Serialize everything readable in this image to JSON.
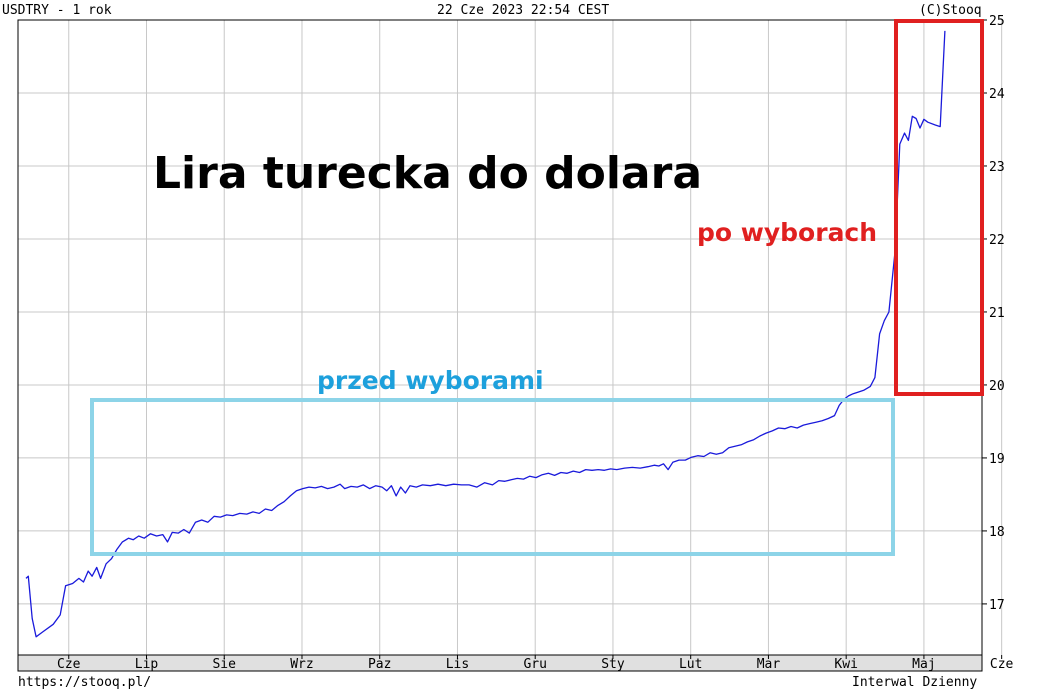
{
  "header": {
    "symbol": "USDTRY - 1 rok",
    "timestamp": "22 Cze 2023 22:54 CEST",
    "copyright": "(C)Stooq"
  },
  "footer": {
    "url": "https://stooq.pl/",
    "interval": "Interwal Dzienny"
  },
  "annotations": {
    "title": "Lira turecka do dolara",
    "after_label": "po wyborach",
    "before_label": "przed wyborami"
  },
  "colors": {
    "line": "#1a1adb",
    "before_box": "#8dd4e8",
    "before_text": "#1da0dc",
    "after_box": "#e02020",
    "after_text": "#e02020",
    "grid": "#c8c8c8",
    "axis_strip": "#e0e0e0"
  },
  "chart_data": {
    "type": "line",
    "title": "Lira turecka do dolara",
    "xlabel": "",
    "ylabel": "",
    "ylim": [
      16.3,
      25.0
    ],
    "grid": true,
    "x_tick_labels": [
      "Cze",
      "Lip",
      "Sie",
      "Wrz",
      "Paz",
      "Lis",
      "Gru",
      "Sty",
      "Lut",
      "Mar",
      "Kwi",
      "Maj",
      "Cze"
    ],
    "y_tick_labels": [
      "17",
      "18",
      "19",
      "20",
      "21",
      "22",
      "23",
      "24",
      "25"
    ],
    "y_ticks": [
      17,
      18,
      19,
      20,
      21,
      22,
      23,
      24,
      25
    ],
    "x_range": [
      0,
      12.4
    ],
    "series": [
      {
        "points": [
          [
            0.0,
            17.35
          ],
          [
            0.03,
            17.38
          ],
          [
            0.08,
            16.8
          ],
          [
            0.13,
            16.55
          ],
          [
            0.22,
            16.62
          ],
          [
            0.35,
            16.72
          ],
          [
            0.44,
            16.85
          ],
          [
            0.51,
            17.25
          ],
          [
            0.6,
            17.28
          ],
          [
            0.68,
            17.35
          ],
          [
            0.74,
            17.3
          ],
          [
            0.8,
            17.45
          ],
          [
            0.85,
            17.38
          ],
          [
            0.91,
            17.5
          ],
          [
            0.96,
            17.35
          ],
          [
            1.03,
            17.55
          ],
          [
            1.1,
            17.62
          ],
          [
            1.17,
            17.75
          ],
          [
            1.24,
            17.85
          ],
          [
            1.32,
            17.9
          ],
          [
            1.38,
            17.88
          ],
          [
            1.45,
            17.93
          ],
          [
            1.52,
            17.9
          ],
          [
            1.6,
            17.96
          ],
          [
            1.68,
            17.93
          ],
          [
            1.76,
            17.95
          ],
          [
            1.82,
            17.85
          ],
          [
            1.88,
            17.98
          ],
          [
            1.96,
            17.97
          ],
          [
            2.03,
            18.02
          ],
          [
            2.1,
            17.97
          ],
          [
            2.18,
            18.12
          ],
          [
            2.26,
            18.15
          ],
          [
            2.34,
            18.12
          ],
          [
            2.42,
            18.2
          ],
          [
            2.5,
            18.19
          ],
          [
            2.58,
            18.22
          ],
          [
            2.66,
            18.21
          ],
          [
            2.75,
            18.24
          ],
          [
            2.84,
            18.23
          ],
          [
            2.92,
            18.26
          ],
          [
            3.0,
            18.24
          ],
          [
            3.08,
            18.3
          ],
          [
            3.16,
            18.28
          ],
          [
            3.24,
            18.35
          ],
          [
            3.32,
            18.4
          ],
          [
            3.4,
            18.48
          ],
          [
            3.48,
            18.55
          ],
          [
            3.56,
            18.58
          ],
          [
            3.64,
            18.6
          ],
          [
            3.72,
            18.59
          ],
          [
            3.8,
            18.61
          ],
          [
            3.88,
            18.58
          ],
          [
            3.96,
            18.6
          ],
          [
            4.04,
            18.64
          ],
          [
            4.1,
            18.58
          ],
          [
            4.18,
            18.61
          ],
          [
            4.26,
            18.6
          ],
          [
            4.34,
            18.63
          ],
          [
            4.42,
            18.58
          ],
          [
            4.5,
            18.62
          ],
          [
            4.58,
            18.6
          ],
          [
            4.64,
            18.55
          ],
          [
            4.7,
            18.62
          ],
          [
            4.76,
            18.48
          ],
          [
            4.82,
            18.6
          ],
          [
            4.88,
            18.52
          ],
          [
            4.94,
            18.62
          ],
          [
            5.02,
            18.6
          ],
          [
            5.1,
            18.63
          ],
          [
            5.2,
            18.62
          ],
          [
            5.3,
            18.64
          ],
          [
            5.4,
            18.62
          ],
          [
            5.5,
            18.64
          ],
          [
            5.6,
            18.63
          ],
          [
            5.7,
            18.63
          ],
          [
            5.8,
            18.6
          ],
          [
            5.9,
            18.66
          ],
          [
            6.0,
            18.63
          ],
          [
            6.08,
            18.69
          ],
          [
            6.16,
            18.68
          ],
          [
            6.24,
            18.7
          ],
          [
            6.32,
            18.72
          ],
          [
            6.4,
            18.71
          ],
          [
            6.48,
            18.75
          ],
          [
            6.56,
            18.73
          ],
          [
            6.64,
            18.77
          ],
          [
            6.72,
            18.79
          ],
          [
            6.8,
            18.76
          ],
          [
            6.88,
            18.8
          ],
          [
            6.96,
            18.79
          ],
          [
            7.04,
            18.82
          ],
          [
            7.12,
            18.8
          ],
          [
            7.2,
            18.84
          ],
          [
            7.28,
            18.83
          ],
          [
            7.36,
            18.84
          ],
          [
            7.44,
            18.83
          ],
          [
            7.52,
            18.85
          ],
          [
            7.6,
            18.84
          ],
          [
            7.7,
            18.86
          ],
          [
            7.8,
            18.87
          ],
          [
            7.9,
            18.86
          ],
          [
            8.0,
            18.88
          ],
          [
            8.08,
            18.9
          ],
          [
            8.14,
            18.89
          ],
          [
            8.2,
            18.92
          ],
          [
            8.26,
            18.84
          ],
          [
            8.32,
            18.94
          ],
          [
            8.4,
            18.97
          ],
          [
            8.48,
            18.97
          ],
          [
            8.56,
            19.01
          ],
          [
            8.64,
            19.03
          ],
          [
            8.72,
            19.02
          ],
          [
            8.8,
            19.07
          ],
          [
            8.88,
            19.05
          ],
          [
            8.96,
            19.07
          ],
          [
            9.04,
            19.14
          ],
          [
            9.12,
            19.16
          ],
          [
            9.2,
            19.18
          ],
          [
            9.28,
            19.22
          ],
          [
            9.36,
            19.25
          ],
          [
            9.44,
            19.3
          ],
          [
            9.52,
            19.34
          ],
          [
            9.6,
            19.37
          ],
          [
            9.68,
            19.41
          ],
          [
            9.76,
            19.4
          ],
          [
            9.84,
            19.43
          ],
          [
            9.92,
            19.41
          ],
          [
            10.0,
            19.45
          ],
          [
            10.08,
            19.47
          ],
          [
            10.16,
            19.49
          ],
          [
            10.24,
            19.51
          ],
          [
            10.32,
            19.54
          ],
          [
            10.4,
            19.58
          ],
          [
            10.46,
            19.72
          ],
          [
            10.52,
            19.8
          ],
          [
            10.58,
            19.85
          ],
          [
            10.64,
            19.88
          ],
          [
            10.7,
            19.9
          ],
          [
            10.78,
            19.93
          ],
          [
            10.86,
            19.98
          ],
          [
            10.92,
            20.1
          ],
          [
            10.98,
            20.7
          ],
          [
            11.04,
            20.88
          ],
          [
            11.1,
            21.0
          ],
          [
            11.18,
            21.85
          ],
          [
            11.24,
            23.3
          ],
          [
            11.3,
            23.45
          ],
          [
            11.35,
            23.35
          ],
          [
            11.4,
            23.68
          ],
          [
            11.45,
            23.65
          ],
          [
            11.5,
            23.52
          ],
          [
            11.55,
            23.64
          ],
          [
            11.6,
            23.6
          ],
          [
            11.7,
            23.56
          ],
          [
            11.76,
            23.54
          ],
          [
            11.82,
            24.85
          ]
        ]
      }
    ]
  }
}
